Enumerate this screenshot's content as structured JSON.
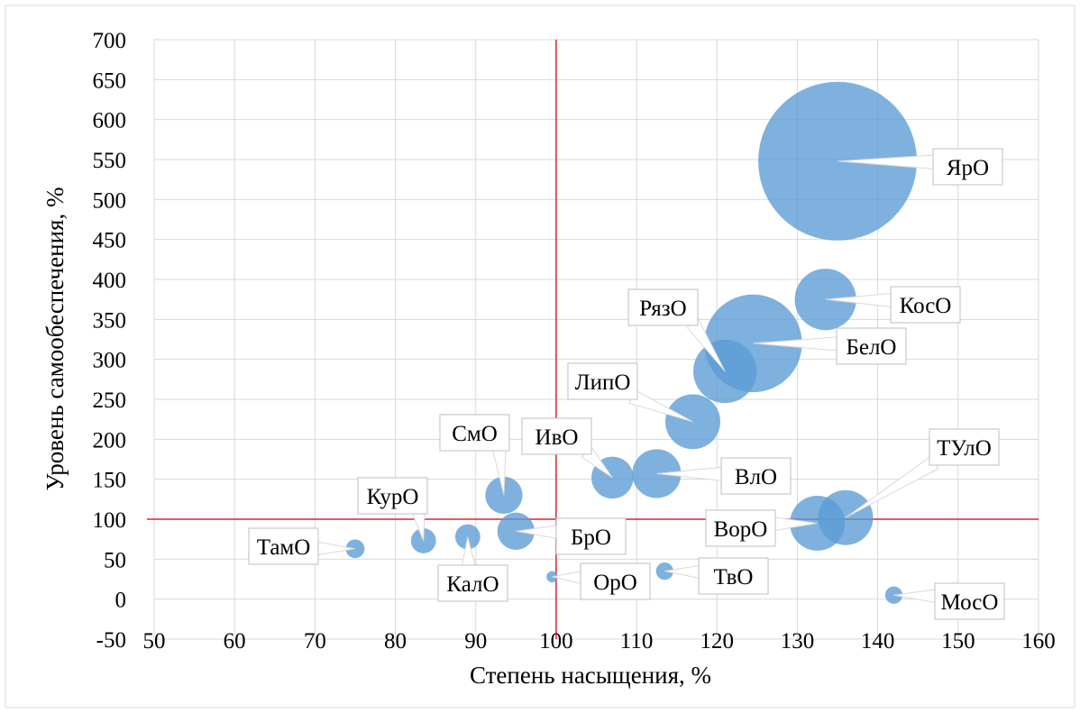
{
  "chart_data": {
    "type": "scatter",
    "subtype": "bubble",
    "title": "",
    "xlabel": "Степень насыщения, %",
    "ylabel": "Уровень самообеспечения, %",
    "xlim": [
      50,
      160
    ],
    "ylim": [
      -50,
      700
    ],
    "xticks": [
      "50",
      "60",
      "70",
      "80",
      "90",
      "100",
      "110",
      "120",
      "130",
      "140",
      "150",
      "160"
    ],
    "yticks": [
      "-50",
      "0",
      "50",
      "100",
      "150",
      "200",
      "250",
      "300",
      "350",
      "400",
      "450",
      "500",
      "550",
      "600",
      "650",
      "700"
    ],
    "grid": true,
    "reference_lines": {
      "x": 100,
      "y": 100,
      "color": "#d9262d"
    },
    "bubble_color": "#5b9bd5",
    "points": [
      {
        "label": "ЯрО",
        "x": 135,
        "y": 548,
        "size": 1000
      },
      {
        "label": "КосО",
        "x": 133.5,
        "y": 375,
        "size": 150
      },
      {
        "label": "БелО",
        "x": 124.5,
        "y": 320,
        "size": 380
      },
      {
        "label": "РязО",
        "x": 121,
        "y": 285,
        "size": 160
      },
      {
        "label": "ЛипО",
        "x": 117,
        "y": 222,
        "size": 120
      },
      {
        "label": "ВлО",
        "x": 112.5,
        "y": 157,
        "size": 95
      },
      {
        "label": "ИвО",
        "x": 107,
        "y": 152,
        "size": 70
      },
      {
        "label": "СмО",
        "x": 93.5,
        "y": 130,
        "size": 55
      },
      {
        "label": "БрО",
        "x": 95,
        "y": 85,
        "size": 55
      },
      {
        "label": "КалО",
        "x": 89,
        "y": 78,
        "size": 25
      },
      {
        "label": "КурО",
        "x": 83.5,
        "y": 73,
        "size": 25
      },
      {
        "label": "ТамО",
        "x": 75,
        "y": 63,
        "size": 14
      },
      {
        "label": "ОрО",
        "x": 99.5,
        "y": 28,
        "size": 5
      },
      {
        "label": "ТвО",
        "x": 113.5,
        "y": 35,
        "size": 12
      },
      {
        "label": "МосО",
        "x": 142,
        "y": 5,
        "size": 12
      },
      {
        "label": "ВорО",
        "x": 132.5,
        "y": 95,
        "size": 120
      },
      {
        "label": "ТУлО",
        "x": 136,
        "y": 102,
        "size": 120
      }
    ]
  }
}
